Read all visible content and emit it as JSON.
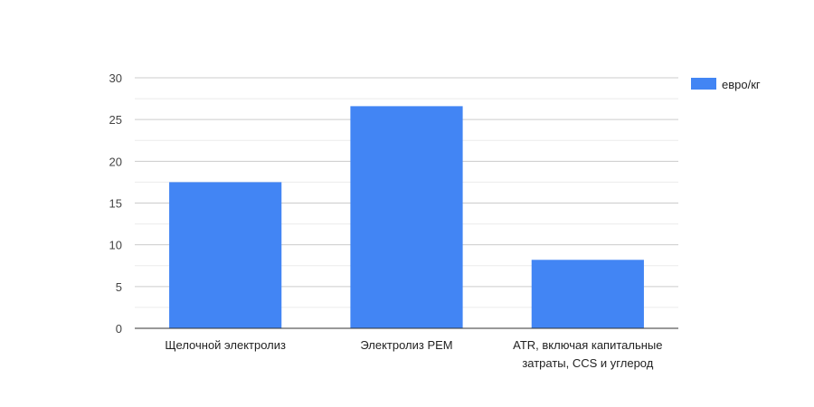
{
  "chart_data": {
    "type": "bar",
    "categories": [
      [
        "Щелочной электролиз"
      ],
      [
        "Электролиз PEM"
      ],
      [
        "ATR, включая капитальные",
        "затраты, CCS и углерод"
      ]
    ],
    "series": [
      {
        "name": "евро/кг",
        "values": [
          17.5,
          26.6,
          8.2
        ],
        "color": "#4285f4"
      }
    ],
    "title": "",
    "xlabel": "",
    "ylabel": "",
    "ylim": [
      0,
      30
    ],
    "yticks": [
      0,
      5,
      10,
      15,
      20,
      25,
      30
    ],
    "grid": true,
    "legend": "top-right"
  }
}
